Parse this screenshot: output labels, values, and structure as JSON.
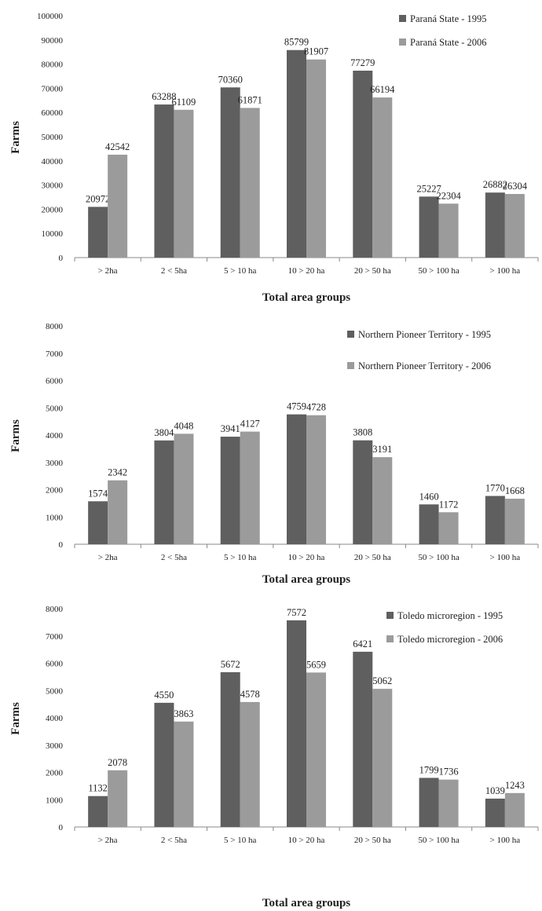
{
  "chart_data": [
    {
      "type": "bar",
      "categories": [
        "> 2ha",
        "2 < 5ha",
        "5 > 10 ha",
        "10 > 20 ha",
        "20 > 50 ha",
        "50 > 100 ha",
        "> 100 ha"
      ],
      "series": [
        {
          "name": "Paraná State - 1995",
          "values": [
            20972,
            63288,
            70360,
            85799,
            77279,
            25227,
            26882
          ],
          "color": "#5f5f5f"
        },
        {
          "name": "Paraná State - 2006",
          "values": [
            42542,
            61109,
            61871,
            81907,
            66194,
            22304,
            26304
          ],
          "color": "#9b9b9b"
        }
      ],
      "yticks": [
        0,
        10000,
        20000,
        30000,
        40000,
        50000,
        60000,
        70000,
        80000,
        90000,
        100000
      ],
      "ylim": [
        0,
        100000
      ],
      "xlabel": "Total area groups",
      "ylabel": "Farms",
      "legend": "top-right",
      "grid": false
    },
    {
      "type": "bar",
      "categories": [
        "> 2ha",
        "2 < 5ha",
        "5 > 10 ha",
        "10 > 20 ha",
        "20 > 50 ha",
        "50 > 100 ha",
        "> 100 ha"
      ],
      "series": [
        {
          "name": "Northern Pioneer Territory - 1995",
          "values": [
            1574,
            3804,
            3941,
            4759,
            3808,
            1460,
            1770
          ],
          "color": "#5f5f5f"
        },
        {
          "name": "Northern Pioneer Territory - 2006",
          "values": [
            2342,
            4048,
            4127,
            4728,
            3191,
            1172,
            1668
          ],
          "color": "#9b9b9b"
        }
      ],
      "yticks": [
        0,
        1000,
        2000,
        3000,
        4000,
        5000,
        6000,
        7000,
        8000
      ],
      "ylim": [
        0,
        8000
      ],
      "xlabel": "Total area groups",
      "ylabel": "Farms",
      "legend": "top-right",
      "grid": false
    },
    {
      "type": "bar",
      "categories": [
        "> 2ha",
        "2 < 5ha",
        "5 > 10 ha",
        "10 > 20 ha",
        "20 > 50 ha",
        "50 > 100 ha",
        "> 100 ha"
      ],
      "series": [
        {
          "name": "Toledo microregion - 1995",
          "values": [
            1132,
            4550,
            5672,
            7572,
            6421,
            1799,
            1039
          ],
          "color": "#5f5f5f"
        },
        {
          "name": "Toledo microregion - 2006",
          "values": [
            2078,
            3863,
            4578,
            5659,
            5062,
            1736,
            1243
          ],
          "color": "#9b9b9b"
        }
      ],
      "yticks": [
        0,
        1000,
        2000,
        3000,
        4000,
        5000,
        6000,
        7000,
        8000
      ],
      "ylim": [
        0,
        8000
      ],
      "xlabel": "Total area groups",
      "ylabel": "Farms",
      "legend": "top-right",
      "grid": false
    }
  ]
}
